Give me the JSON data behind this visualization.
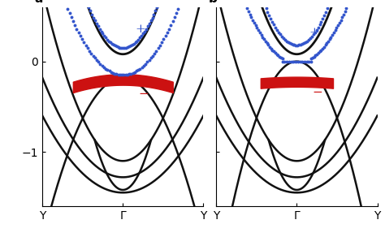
{
  "panel_labels": [
    "a",
    "b"
  ],
  "x_tick_labels": [
    "Y",
    "Γ",
    "Y"
  ],
  "y_ticks": [
    0,
    -1
  ],
  "ylim": [
    -1.6,
    0.6
  ],
  "xlim": [
    -1.0,
    1.0
  ],
  "blue_color": "#3355cc",
  "red_color": "#cc1111",
  "black_color": "#111111",
  "bg_color": "#ffffff",
  "figsize": [
    4.74,
    2.92
  ],
  "dpi": 100
}
